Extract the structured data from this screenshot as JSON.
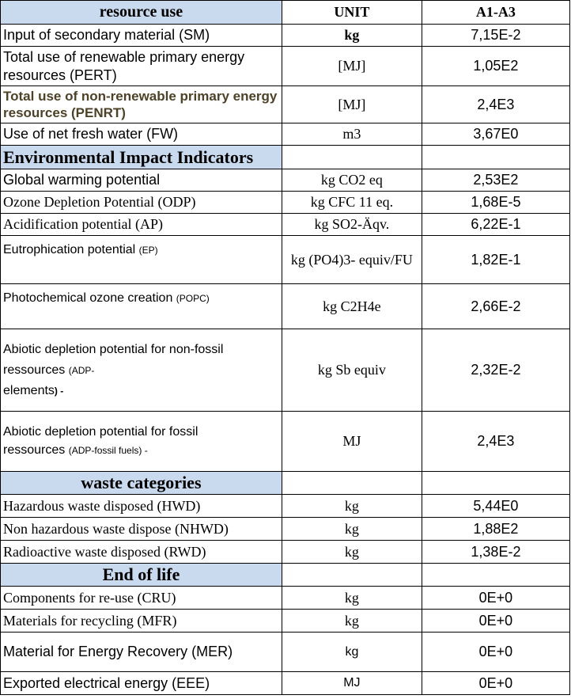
{
  "header": {
    "col1": "resource use",
    "col2": "UNIT",
    "col3": "A1-A3"
  },
  "resource_rows": [
    {
      "label": "Input of secondary material (SM)",
      "unit": "kg",
      "value": "7,15E-2"
    },
    {
      "label": "Total use of renewable primary energy resources (PERT)",
      "unit": "[MJ]",
      "value": "1,05E2"
    },
    {
      "label": "Total use of non-renewable primary energy resources (PENRT)",
      "unit": "[MJ]",
      "value": "2,4E3"
    },
    {
      "label": "Use of net fresh water (FW)",
      "unit": "m3",
      "value": "3,67E0"
    }
  ],
  "section_env": "Environmental Impact Indicators",
  "env_rows": [
    {
      "label": "Global warming potential",
      "unit": "kg CO2 eq",
      "value": "2,53E2"
    },
    {
      "label": "Ozone Depletion Potential (ODP)",
      "unit": "kg CFC 11 eq.",
      "value": "1,68E-5"
    },
    {
      "label": "Acidification potential (AP)",
      "unit": "kg SO2-Äqv.",
      "value": "6,22E-1"
    },
    {
      "label_main": "Eutrophication potential ",
      "label_sub": "(EP)",
      "unit": "kg (PO4)3-  equiv/FU",
      "value": "1,82E-1"
    },
    {
      "label_main": "Photochemical ozone creation ",
      "label_sub": "(POPC)",
      "unit": "kg C2H4e",
      "value": "2,66E-2"
    },
    {
      "label_line1": "Abiotic depletion potential for non-fossil",
      "label_line2a": "ressources ",
      "label_line2b": " (ADP-",
      "label_line3a": "elements",
      "label_line3b": ") -",
      "unit": "kg Sb equiv",
      "value": "2,32E-2"
    },
    {
      "label_line1": "Abiotic depletion potential for fossil",
      "label_line2a": "ressources ",
      "label_line2b": "(ADP-fossil fuels) -",
      "unit": "MJ",
      "value": "2,4E3"
    }
  ],
  "section_waste": "waste categories",
  "waste_rows": [
    {
      "label": "Hazardous waste disposed (HWD)",
      "unit": "kg",
      "value": "5,44E0"
    },
    {
      "label": "Non hazardous waste dispose (NHWD)",
      "unit": "kg",
      "value": "1,88E2"
    },
    {
      "label": "Radioactive waste disposed (RWD)",
      "unit": "kg",
      "value": "1,38E-2"
    }
  ],
  "section_eol": "End of life",
  "eol_rows": [
    {
      "label": "Components for re-use (CRU)",
      "unit": "kg",
      "value": "0E+0"
    },
    {
      "label": "Materials for recycling (MFR)",
      "unit": "kg",
      "value": "0E+0"
    },
    {
      "label": "Material for Energy Recovery (MER)",
      "unit": "kg",
      "value": "0E+0"
    },
    {
      "label": "Exported electrical energy (EEE)",
      "unit": "MJ",
      "value": "0E+0"
    }
  ],
  "colors": {
    "header_bg": "#c9d9ee",
    "penrt_text": "#4d4127",
    "border": "#000000"
  }
}
